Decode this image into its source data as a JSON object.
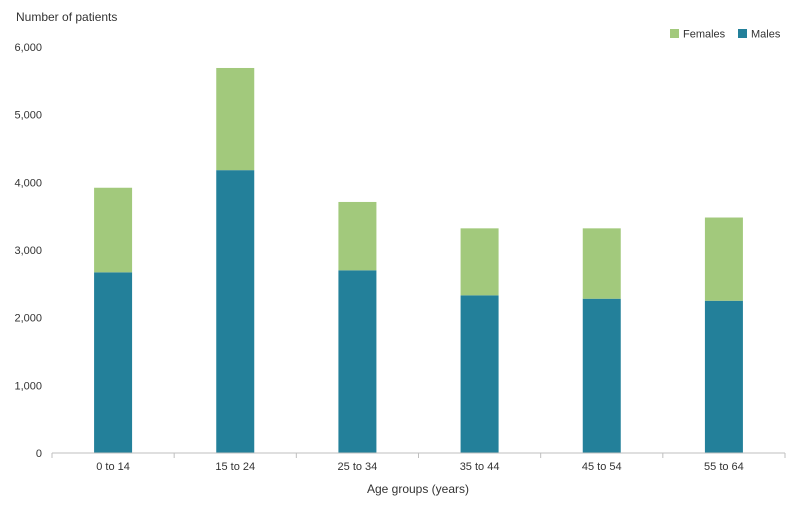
{
  "chart_data": {
    "type": "bar",
    "stacked": true,
    "title": "",
    "ylabel": "Number of patients",
    "xlabel": "Age groups (years)",
    "categories": [
      "0 to 14",
      "15 to 24",
      "25 to 34",
      "35 to 44",
      "45 to 54",
      "55 to 64"
    ],
    "series": [
      {
        "name": "Males",
        "color": "#23809A",
        "values": [
          2670,
          4180,
          2700,
          2330,
          2280,
          2250
        ]
      },
      {
        "name": "Females",
        "color": "#A2C97C",
        "values": [
          1250,
          1510,
          1010,
          990,
          1040,
          1230
        ]
      }
    ],
    "ylim": [
      0,
      6000
    ],
    "yticks": [
      0,
      1000,
      2000,
      3000,
      4000,
      5000,
      6000
    ],
    "ytick_labels": [
      "0",
      "1,000",
      "2,000",
      "3,000",
      "4,000",
      "5,000",
      "6,000"
    ],
    "legend": {
      "placement": "top-right",
      "items": [
        {
          "label": "Females",
          "color": "#A2C97C"
        },
        {
          "label": "Males",
          "color": "#23809A"
        }
      ]
    },
    "grid": false
  }
}
